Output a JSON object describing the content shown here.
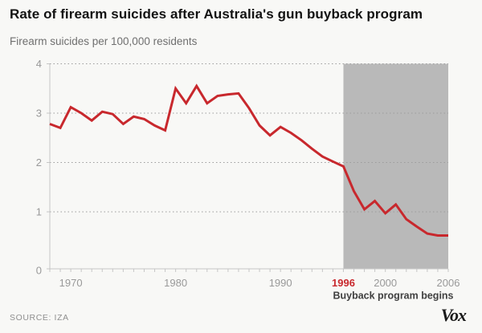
{
  "header": {
    "title": "Rate of firearm suicides after Australia's gun buyback program",
    "subtitle": "Firearm suicides per 100,000 residents"
  },
  "chart_data": {
    "type": "line",
    "title": "Rate of firearm suicides after Australia's gun buyback program",
    "ylabel": "Firearm suicides per 100,000 residents",
    "x": [
      1968,
      1969,
      1970,
      1971,
      1972,
      1973,
      1974,
      1975,
      1976,
      1977,
      1978,
      1979,
      1980,
      1981,
      1982,
      1983,
      1984,
      1985,
      1986,
      1987,
      1988,
      1989,
      1990,
      1991,
      1992,
      1993,
      1994,
      1995,
      1996,
      1997,
      1998,
      1999,
      2000,
      2001,
      2002,
      2003,
      2004,
      2005,
      2006
    ],
    "values": [
      2.78,
      2.7,
      3.12,
      3.0,
      2.85,
      3.03,
      2.98,
      2.78,
      2.93,
      2.88,
      2.75,
      2.65,
      3.5,
      3.2,
      3.55,
      3.2,
      3.35,
      3.38,
      3.4,
      3.1,
      2.75,
      2.55,
      2.72,
      2.6,
      2.45,
      2.28,
      2.12,
      2.02,
      1.92,
      1.42,
      1.05,
      1.22,
      0.97,
      1.15,
      0.85,
      0.7,
      0.56,
      0.52,
      0.52
    ],
    "xlim": [
      1968,
      2006
    ],
    "ylim": [
      0,
      4
    ],
    "yticks": [
      0,
      1,
      2,
      3,
      4
    ],
    "xticks": [
      1970,
      1980,
      1990,
      1996,
      2000,
      2006
    ],
    "highlight_tick": 1996,
    "grid": "horizontal-dashed",
    "legend_position": "none",
    "highlight_region": {
      "start": 1996,
      "end": 2006,
      "label": "Buyback program begins",
      "color": "#b9b9b9"
    },
    "colors": {
      "line": "#c8282d",
      "highlight_tick_label": "#c8282d",
      "gridline": "#9c9c9c",
      "axis": "#c6c6c6",
      "tick_label": "#999999",
      "region_label": "#404040"
    }
  },
  "footer": {
    "source": "SOURCE: IZA",
    "logo": "Vox"
  }
}
